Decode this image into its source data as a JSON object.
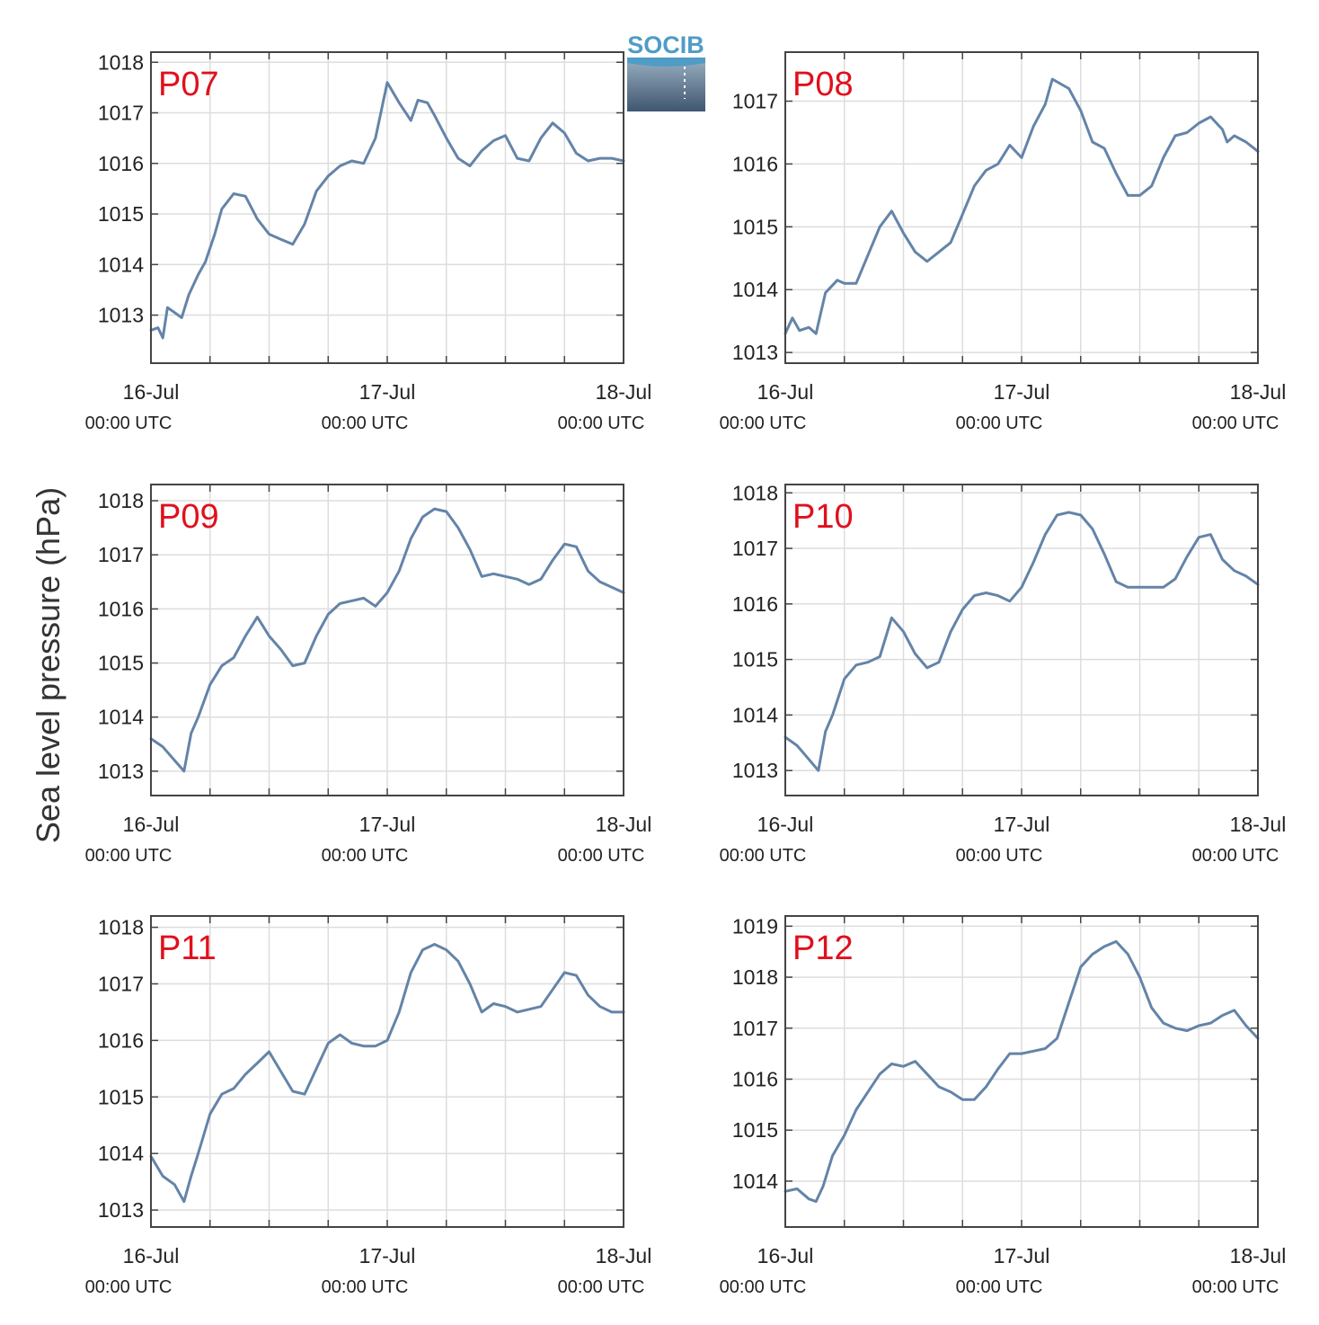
{
  "y_axis_label": "Sea level pressure (hPa)",
  "logo": {
    "text": "SOCIB",
    "color": "#4f9cc6"
  },
  "line_color": "#6484a8",
  "station_label_color": "#e0101c",
  "x_ticks": [
    {
      "day": 0,
      "label": "16-Jul",
      "sub": "00:00 UTC"
    },
    {
      "day": 1,
      "label": "17-Jul",
      "sub": "00:00 UTC"
    },
    {
      "day": 2,
      "label": "18-Jul",
      "sub": "00:00 UTC"
    }
  ],
  "chart_data": [
    {
      "type": "line",
      "station": "P07",
      "xlim": [
        "16-Jul 00:00 UTC",
        "18-Jul 00:00 UTC"
      ],
      "ylim": [
        1012.05,
        1018.2
      ],
      "yticks": [
        1013,
        1014,
        1015,
        1016,
        1017,
        1018
      ],
      "x_days": [
        0,
        0.03,
        0.05,
        0.07,
        0.1,
        0.13,
        0.16,
        0.2,
        0.23,
        0.27,
        0.3,
        0.35,
        0.4,
        0.45,
        0.5,
        0.55,
        0.6,
        0.65,
        0.7,
        0.75,
        0.8,
        0.85,
        0.9,
        0.95,
        1.0,
        1.05,
        1.1,
        1.13,
        1.17,
        1.2,
        1.25,
        1.3,
        1.35,
        1.4,
        1.45,
        1.5,
        1.55,
        1.6,
        1.65,
        1.7,
        1.75,
        1.8,
        1.85,
        1.9,
        1.95,
        2.0
      ],
      "values": [
        1012.7,
        1012.75,
        1012.55,
        1013.15,
        1013.05,
        1012.95,
        1013.4,
        1013.8,
        1014.05,
        1014.6,
        1015.1,
        1015.4,
        1015.35,
        1014.9,
        1014.6,
        1014.5,
        1014.4,
        1014.8,
        1015.45,
        1015.75,
        1015.95,
        1016.05,
        1016.0,
        1016.5,
        1017.6,
        1017.2,
        1016.85,
        1017.25,
        1017.2,
        1016.95,
        1016.5,
        1016.1,
        1015.95,
        1016.25,
        1016.45,
        1016.55,
        1016.1,
        1016.05,
        1016.5,
        1016.8,
        1016.6,
        1016.2,
        1016.05,
        1016.1,
        1016.1,
        1016.05
      ]
    },
    {
      "type": "line",
      "station": "P08",
      "xlim": [
        "16-Jul 00:00 UTC",
        "18-Jul 00:00 UTC"
      ],
      "ylim": [
        1012.83,
        1017.78
      ],
      "yticks": [
        1013,
        1014,
        1015,
        1016,
        1017
      ],
      "x_days": [
        0,
        0.03,
        0.06,
        0.1,
        0.13,
        0.17,
        0.22,
        0.25,
        0.3,
        0.35,
        0.4,
        0.45,
        0.5,
        0.55,
        0.6,
        0.65,
        0.7,
        0.75,
        0.8,
        0.85,
        0.9,
        0.95,
        1.0,
        1.05,
        1.1,
        1.13,
        1.2,
        1.25,
        1.3,
        1.35,
        1.4,
        1.45,
        1.5,
        1.55,
        1.6,
        1.65,
        1.7,
        1.75,
        1.8,
        1.85,
        1.87,
        1.9,
        1.95,
        2.0
      ],
      "values": [
        1013.3,
        1013.55,
        1013.35,
        1013.4,
        1013.3,
        1013.95,
        1014.15,
        1014.1,
        1014.1,
        1014.55,
        1015.0,
        1015.25,
        1014.9,
        1014.6,
        1014.45,
        1014.6,
        1014.75,
        1015.2,
        1015.65,
        1015.9,
        1016.0,
        1016.3,
        1016.1,
        1016.6,
        1016.95,
        1017.35,
        1017.2,
        1016.85,
        1016.35,
        1016.25,
        1015.85,
        1015.5,
        1015.5,
        1015.65,
        1016.1,
        1016.45,
        1016.5,
        1016.65,
        1016.75,
        1016.55,
        1016.35,
        1016.45,
        1016.35,
        1016.2
      ]
    },
    {
      "type": "line",
      "station": "P09",
      "xlim": [
        "16-Jul 00:00 UTC",
        "18-Jul 00:00 UTC"
      ],
      "ylim": [
        1012.55,
        1018.3
      ],
      "yticks": [
        1013,
        1014,
        1015,
        1016,
        1017,
        1018
      ],
      "x_days": [
        0,
        0.05,
        0.1,
        0.14,
        0.17,
        0.2,
        0.25,
        0.3,
        0.35,
        0.4,
        0.45,
        0.5,
        0.55,
        0.6,
        0.65,
        0.7,
        0.75,
        0.8,
        0.85,
        0.9,
        0.95,
        1.0,
        1.05,
        1.1,
        1.15,
        1.2,
        1.25,
        1.3,
        1.35,
        1.4,
        1.45,
        1.5,
        1.55,
        1.6,
        1.65,
        1.7,
        1.75,
        1.8,
        1.85,
        1.9,
        1.95,
        2.0
      ],
      "values": [
        1013.6,
        1013.45,
        1013.2,
        1013.0,
        1013.7,
        1014.0,
        1014.6,
        1014.95,
        1015.1,
        1015.5,
        1015.85,
        1015.5,
        1015.25,
        1014.95,
        1015.0,
        1015.5,
        1015.9,
        1016.1,
        1016.15,
        1016.2,
        1016.05,
        1016.3,
        1016.7,
        1017.3,
        1017.7,
        1017.85,
        1017.8,
        1017.5,
        1017.1,
        1016.6,
        1016.65,
        1016.6,
        1016.55,
        1016.45,
        1016.55,
        1016.9,
        1017.2,
        1017.15,
        1016.7,
        1016.5,
        1016.4,
        1016.3
      ]
    },
    {
      "type": "line",
      "station": "P10",
      "xlim": [
        "16-Jul 00:00 UTC",
        "18-Jul 00:00 UTC"
      ],
      "ylim": [
        1012.55,
        1018.15
      ],
      "yticks": [
        1013,
        1014,
        1015,
        1016,
        1017,
        1018
      ],
      "x_days": [
        0,
        0.05,
        0.1,
        0.14,
        0.17,
        0.2,
        0.25,
        0.3,
        0.35,
        0.4,
        0.45,
        0.5,
        0.55,
        0.6,
        0.65,
        0.7,
        0.75,
        0.8,
        0.85,
        0.9,
        0.95,
        1.0,
        1.05,
        1.1,
        1.15,
        1.2,
        1.25,
        1.3,
        1.35,
        1.4,
        1.45,
        1.5,
        1.55,
        1.6,
        1.65,
        1.7,
        1.75,
        1.8,
        1.85,
        1.9,
        1.95,
        2.0
      ],
      "values": [
        1013.6,
        1013.45,
        1013.2,
        1013.0,
        1013.7,
        1014.0,
        1014.65,
        1014.9,
        1014.95,
        1015.05,
        1015.75,
        1015.5,
        1015.1,
        1014.85,
        1014.95,
        1015.5,
        1015.9,
        1016.15,
        1016.2,
        1016.15,
        1016.05,
        1016.3,
        1016.75,
        1017.25,
        1017.6,
        1017.65,
        1017.6,
        1017.35,
        1016.9,
        1016.4,
        1016.3,
        1016.3,
        1016.3,
        1016.3,
        1016.45,
        1016.85,
        1017.2,
        1017.25,
        1016.8,
        1016.6,
        1016.5,
        1016.35
      ]
    },
    {
      "type": "line",
      "station": "P11",
      "xlim": [
        "16-Jul 00:00 UTC",
        "18-Jul 00:00 UTC"
      ],
      "ylim": [
        1012.7,
        1018.2
      ],
      "yticks": [
        1013,
        1014,
        1015,
        1016,
        1017,
        1018
      ],
      "x_days": [
        0,
        0.05,
        0.1,
        0.14,
        0.17,
        0.2,
        0.25,
        0.3,
        0.35,
        0.4,
        0.45,
        0.5,
        0.55,
        0.6,
        0.65,
        0.7,
        0.75,
        0.8,
        0.85,
        0.9,
        0.95,
        1.0,
        1.05,
        1.1,
        1.15,
        1.2,
        1.25,
        1.3,
        1.35,
        1.4,
        1.45,
        1.5,
        1.55,
        1.6,
        1.65,
        1.7,
        1.75,
        1.8,
        1.85,
        1.9,
        1.95,
        2.0
      ],
      "values": [
        1013.95,
        1013.6,
        1013.45,
        1013.15,
        1013.6,
        1014.0,
        1014.7,
        1015.05,
        1015.15,
        1015.4,
        1015.6,
        1015.8,
        1015.45,
        1015.1,
        1015.05,
        1015.5,
        1015.95,
        1016.1,
        1015.95,
        1015.9,
        1015.9,
        1016.0,
        1016.5,
        1017.2,
        1017.6,
        1017.7,
        1017.6,
        1017.4,
        1017.0,
        1016.5,
        1016.65,
        1016.6,
        1016.5,
        1016.55,
        1016.6,
        1016.9,
        1017.2,
        1017.15,
        1016.8,
        1016.6,
        1016.5,
        1016.5
      ]
    },
    {
      "type": "line",
      "station": "P12",
      "xlim": [
        "16-Jul 00:00 UTC",
        "18-Jul 00:00 UTC"
      ],
      "ylim": [
        1013.1,
        1019.2
      ],
      "yticks": [
        1014,
        1015,
        1016,
        1017,
        1018,
        1019
      ],
      "x_days": [
        0,
        0.05,
        0.1,
        0.13,
        0.16,
        0.2,
        0.25,
        0.3,
        0.35,
        0.4,
        0.45,
        0.5,
        0.55,
        0.6,
        0.65,
        0.7,
        0.75,
        0.8,
        0.85,
        0.9,
        0.95,
        1.0,
        1.05,
        1.1,
        1.15,
        1.2,
        1.25,
        1.3,
        1.35,
        1.4,
        1.45,
        1.5,
        1.55,
        1.6,
        1.65,
        1.7,
        1.75,
        1.8,
        1.85,
        1.9,
        1.95,
        2.0
      ],
      "values": [
        1013.8,
        1013.85,
        1013.65,
        1013.6,
        1013.9,
        1014.5,
        1014.9,
        1015.4,
        1015.75,
        1016.1,
        1016.3,
        1016.25,
        1016.35,
        1016.1,
        1015.85,
        1015.75,
        1015.6,
        1015.6,
        1015.85,
        1016.2,
        1016.5,
        1016.5,
        1016.55,
        1016.6,
        1016.8,
        1017.5,
        1018.2,
        1018.45,
        1018.6,
        1018.7,
        1018.45,
        1018.0,
        1017.4,
        1017.1,
        1017.0,
        1016.95,
        1017.05,
        1017.1,
        1017.25,
        1017.35,
        1017.05,
        1016.8
      ]
    }
  ]
}
